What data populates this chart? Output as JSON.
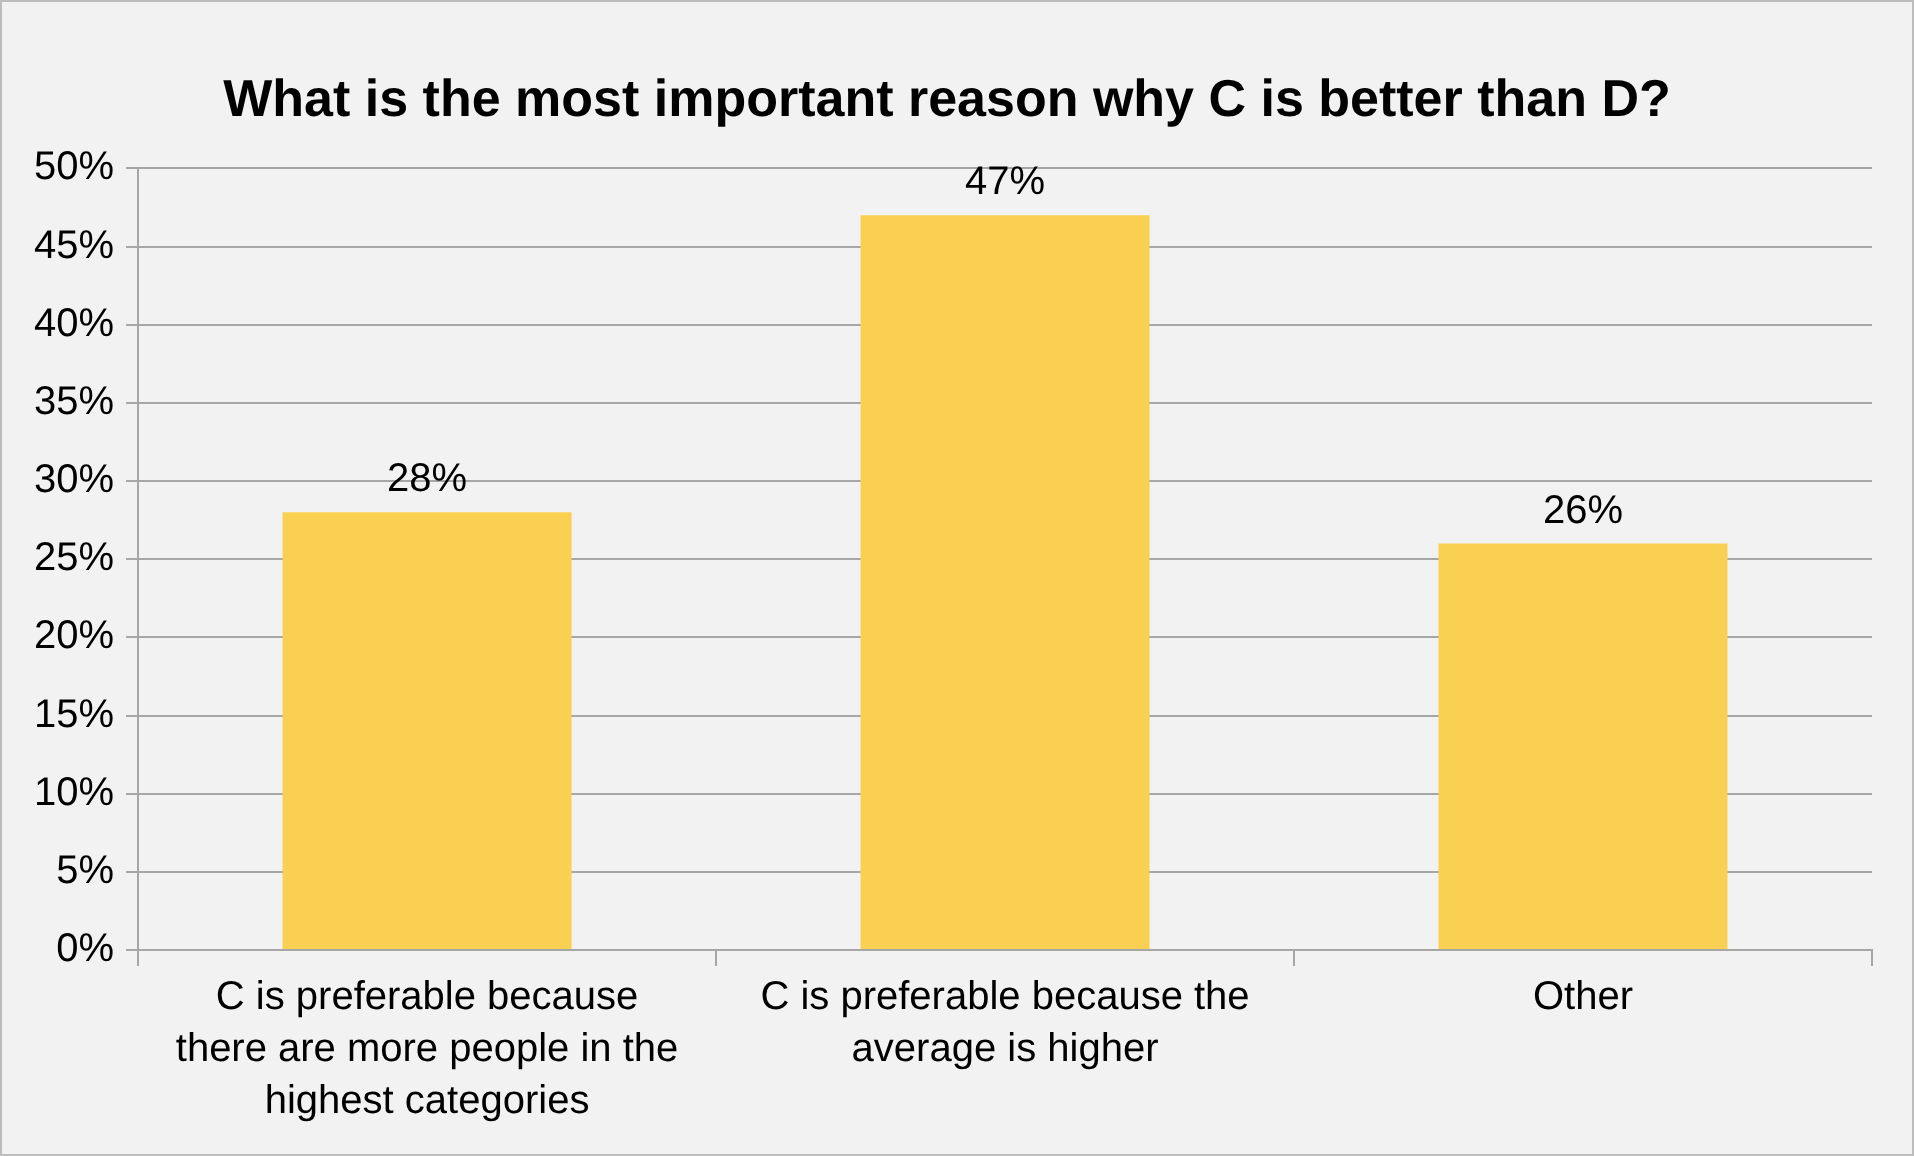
{
  "chart_data": {
    "type": "bar",
    "title": "What is the most important reason why C is better than D?",
    "categories": [
      "C is preferable because there are more people in the highest categories",
      "C is preferable because the average is higher",
      "Other"
    ],
    "values": [
      28,
      47,
      26
    ],
    "value_labels": [
      "28%",
      "47%",
      "26%"
    ],
    "color": "#fad052",
    "ylim": [
      0,
      50
    ],
    "yticks": [
      {
        "value": 0,
        "label": "0%"
      },
      {
        "value": 5,
        "label": "5%"
      },
      {
        "value": 10,
        "label": "10%"
      },
      {
        "value": 15,
        "label": "15%"
      },
      {
        "value": 20,
        "label": "20%"
      },
      {
        "value": 25,
        "label": "25%"
      },
      {
        "value": 30,
        "label": "30%"
      },
      {
        "value": 35,
        "label": "35%"
      },
      {
        "value": 40,
        "label": "40%"
      },
      {
        "value": 45,
        "label": "45%"
      },
      {
        "value": 50,
        "label": "50%"
      }
    ],
    "grid": "y",
    "legend": false
  }
}
